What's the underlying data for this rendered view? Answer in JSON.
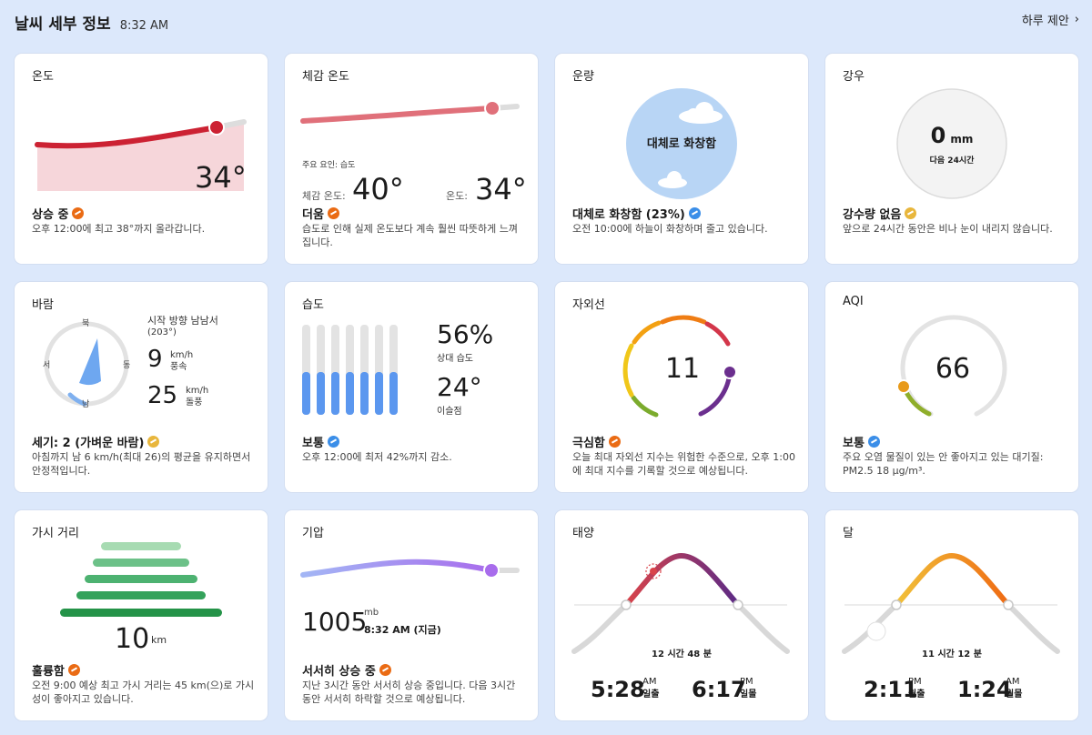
{
  "header": {
    "title": "날씨 세부 정보",
    "time": "8:32 AM",
    "more": "하루 제안"
  },
  "temp": {
    "title": "온도",
    "value": "34°",
    "status": "상승 중",
    "desc": "오후 12:00에 최고 38°까지 올라갑니다."
  },
  "feels": {
    "title": "체감 온도",
    "factor": "주요 요인: 습도",
    "feels_label": "체감 온도:",
    "feels_value": "40°",
    "temp_label": "온도:",
    "temp_value": "34°",
    "status": "더움",
    "desc": "습도로 인해 실제 온도보다 계속 훨씬 따뜻하게 느껴집니다."
  },
  "cloud": {
    "title": "운량",
    "circle_text": "대체로 화창함",
    "status": "대체로 화창함 (23%)",
    "desc": "오전 10:00에 하늘이 화창하며 줄고 있습니다."
  },
  "rain": {
    "title": "강우",
    "value": "0",
    "unit": "mm",
    "sub": "다음 24시간",
    "status": "강수량 없음",
    "desc": "앞으로 24시간 동안은 비나 눈이 내리지 않습니다."
  },
  "wind": {
    "title": "바람",
    "dir_text": "시작 방향 남남서",
    "deg": "(203°)",
    "n": "북",
    "s": "남",
    "e": "동",
    "w": "서",
    "speed": "9",
    "speed_unit": "km/h",
    "speed_label": "풍속",
    "gust": "25",
    "gust_unit": "km/h",
    "gust_label": "돌풍",
    "status": "세기: 2 (가벼운 바람)",
    "desc": "아침까지 남 6 km/h(최대 26)의 평균을 유지하면서 안정적입니다."
  },
  "humidity": {
    "title": "습도",
    "value": "56%",
    "value_label": "상대 습도",
    "dew": "24°",
    "dew_label": "이슬점",
    "status": "보통",
    "desc": "오후 12:00에 최저 42%까지 감소."
  },
  "uv": {
    "title": "자외선",
    "value": "11",
    "status": "극심함",
    "desc": "오늘 최대 자외선 지수는 위험한 수준으로, 오후 1:00에 최대 지수를 기록할 것으로 예상됩니다."
  },
  "aqi": {
    "title": "AQI",
    "value": "66",
    "status": "보통",
    "desc": "주요 오염 물질이 있는 안 좋아지고 있는 대기질: PM2.5 18 µg/m³."
  },
  "visibility": {
    "title": "가시 거리",
    "value": "10",
    "unit": "km",
    "status": "훌륭함",
    "desc": "오전 9:00 예상 최고 가시 거리는 45 km(으)로 가시성이 좋아지고 있습니다."
  },
  "pressure": {
    "title": "기압",
    "value": "1005",
    "unit": "mb",
    "time": "8:32 AM (지금)",
    "status": "서서히 상승 중",
    "desc": "지난 3시간 동안 서서히 상승 중입니다. 다음 3시간 동안 서서히 하락할 것으로 예상됩니다."
  },
  "sun": {
    "title": "태양",
    "duration": "12 시간 48 분",
    "rise": "5:28",
    "rise_ampm": "AM",
    "rise_label": "일출",
    "set": "6:17",
    "set_ampm": "PM",
    "set_label": "일몰"
  },
  "moon": {
    "title": "달",
    "duration": "11 시간 12 분",
    "rise": "2:11",
    "rise_ampm": "PM",
    "rise_label": "월출",
    "set": "1:24",
    "set_ampm": "AM",
    "set_label": "월몰"
  }
}
